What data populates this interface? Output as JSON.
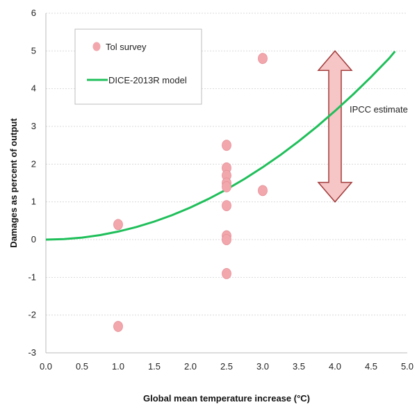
{
  "chart_data": {
    "type": "scatter",
    "xlabel": "Global mean temperature increase (°C)",
    "ylabel": "Damages as percent of output",
    "xlim": [
      0.0,
      5.0
    ],
    "ylim": [
      -3,
      6
    ],
    "x_ticks": [
      "0.0",
      "0.5",
      "1.0",
      "1.5",
      "2.0",
      "2.5",
      "3.0",
      "3.5",
      "4.0",
      "4.5",
      "5.0"
    ],
    "y_ticks": [
      "-3",
      "-2",
      "-1",
      "0",
      "1",
      "2",
      "3",
      "4",
      "5",
      "6"
    ],
    "grid": "horizontal",
    "legend_placement": "top-left",
    "series": [
      {
        "name": "Tol survey",
        "kind": "points",
        "color": "#f2a7ad",
        "points": [
          {
            "x": 1.0,
            "y": 0.4
          },
          {
            "x": 1.0,
            "y": -2.3
          },
          {
            "x": 2.5,
            "y": 2.5
          },
          {
            "x": 2.5,
            "y": 1.9
          },
          {
            "x": 2.5,
            "y": 1.7
          },
          {
            "x": 2.5,
            "y": 1.5
          },
          {
            "x": 2.5,
            "y": 1.4
          },
          {
            "x": 2.5,
            "y": 0.9
          },
          {
            "x": 2.5,
            "y": 0.1
          },
          {
            "x": 2.5,
            "y": 0.0
          },
          {
            "x": 2.5,
            "y": -0.9
          },
          {
            "x": 3.0,
            "y": 4.8
          },
          {
            "x": 3.0,
            "y": 1.3
          }
        ]
      },
      {
        "name": "DICE-2013R model",
        "kind": "line",
        "color": "#1fbf5a",
        "points": [
          {
            "x": 0.0,
            "y": 0.0
          },
          {
            "x": 0.25,
            "y": 0.013
          },
          {
            "x": 0.5,
            "y": 0.053
          },
          {
            "x": 0.75,
            "y": 0.12
          },
          {
            "x": 1.0,
            "y": 0.213
          },
          {
            "x": 1.25,
            "y": 0.333
          },
          {
            "x": 1.5,
            "y": 0.479
          },
          {
            "x": 1.75,
            "y": 0.652
          },
          {
            "x": 2.0,
            "y": 0.852
          },
          {
            "x": 2.25,
            "y": 1.078
          },
          {
            "x": 2.5,
            "y": 1.331
          },
          {
            "x": 2.75,
            "y": 1.61
          },
          {
            "x": 3.0,
            "y": 1.917
          },
          {
            "x": 3.25,
            "y": 2.25
          },
          {
            "x": 3.5,
            "y": 2.609
          },
          {
            "x": 3.75,
            "y": 2.995
          },
          {
            "x": 4.0,
            "y": 3.408
          },
          {
            "x": 4.25,
            "y": 3.847
          },
          {
            "x": 4.5,
            "y": 4.313
          },
          {
            "x": 4.75,
            "y": 4.806
          },
          {
            "x": 4.83,
            "y": 4.99
          }
        ]
      }
    ],
    "annotation": {
      "label": "IPCC estimate",
      "arrow_x": 4.0,
      "y_range": [
        1.0,
        5.0
      ],
      "color": "#f6c6c6"
    }
  }
}
